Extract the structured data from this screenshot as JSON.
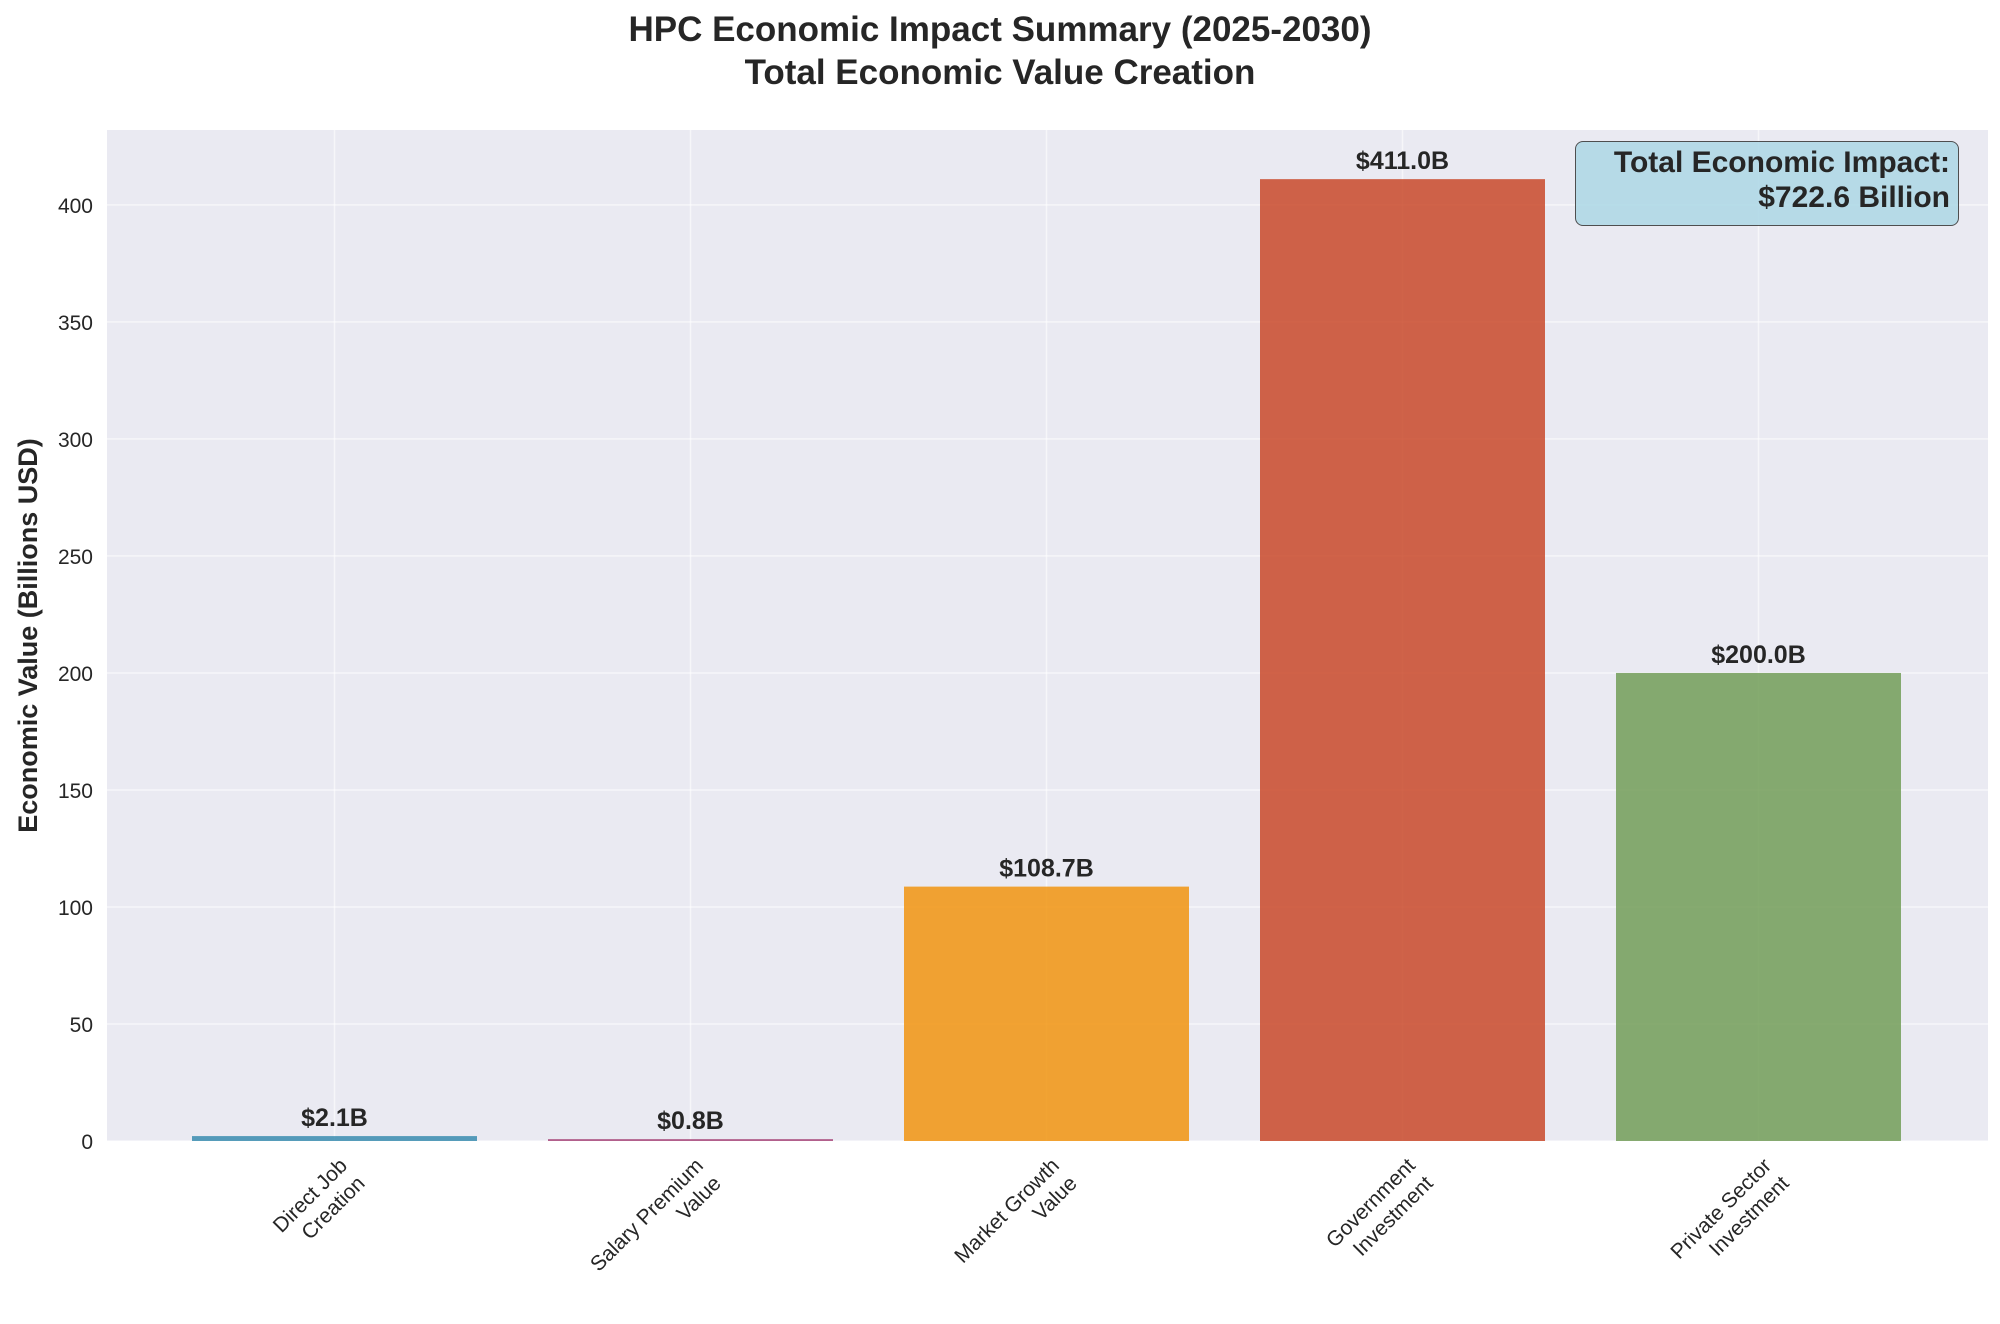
{
  "chart_data": {
    "type": "bar",
    "title": [
      "HPC Economic Impact Summary (2025-2030)",
      "Total Economic Value Creation"
    ],
    "ylabel": "Economic Value (Billions USD)",
    "xlabel": "",
    "categories": [
      [
        "Direct Job",
        "Creation"
      ],
      [
        "Salary Premium",
        "Value"
      ],
      [
        "Market Growth",
        "Value"
      ],
      [
        "Government",
        "Investment"
      ],
      [
        "Private Sector",
        "Investment"
      ]
    ],
    "values": [
      2.1,
      0.8,
      108.7,
      411.0,
      200.0
    ],
    "value_labels": [
      "$2.1B",
      "$0.8B",
      "$108.7B",
      "$411.0B",
      "$200.0B"
    ],
    "colors": [
      "#2e86ab",
      "#a23b72",
      "#f18f01",
      "#c73e1d",
      "#6a994e"
    ],
    "ylim": [
      0,
      432
    ],
    "yticks": [
      0,
      50,
      100,
      150,
      200,
      250,
      300,
      350,
      400
    ],
    "grid": true,
    "annotation": [
      "Total Economic Impact:",
      "$722.6 Billion"
    ],
    "annotation_color": "#add8e6"
  }
}
